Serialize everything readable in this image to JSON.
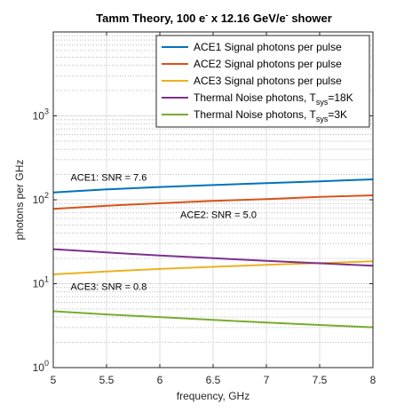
{
  "chart_data": {
    "type": "line",
    "title_parts": [
      "Tamm Theory, 100 e",
      "-",
      " x 12.16 GeV/e",
      "-",
      " shower"
    ],
    "xlabel": "frequency, GHz",
    "ylabel": "photons per GHz",
    "xlim": [
      5,
      8
    ],
    "ylim": [
      1,
      10000
    ],
    "yscale": "log",
    "grid": true,
    "legend_placement": "top-right",
    "xticks": [
      5,
      5.5,
      6,
      6.5,
      7,
      7.5,
      8
    ],
    "xtick_labels": [
      "5",
      "5.5",
      "6",
      "6.5",
      "7",
      "7.5",
      "8"
    ],
    "yticks": [
      1,
      10,
      100,
      1000
    ],
    "ytick_labels": [
      {
        "base": "10",
        "exp": "0"
      },
      {
        "base": "10",
        "exp": "1"
      },
      {
        "base": "10",
        "exp": "2"
      },
      {
        "base": "10",
        "exp": "3"
      }
    ],
    "series": [
      {
        "name": "ACE1 Signal photons per pulse",
        "name_parts": [
          "ACE1 Signal photons per pulse",
          "",
          ""
        ],
        "color": "#0072BD",
        "x": [
          5,
          5.5,
          6,
          6.5,
          7,
          7.5,
          8
        ],
        "y": [
          122,
          133,
          142,
          150,
          158,
          166,
          175
        ]
      },
      {
        "name": "ACE2 Signal photons per pulse",
        "name_parts": [
          "ACE2 Signal photons per pulse",
          "",
          ""
        ],
        "color": "#D95319",
        "x": [
          5,
          5.5,
          6,
          6.5,
          7,
          7.5,
          8
        ],
        "y": [
          78,
          85,
          91,
          97,
          102,
          108,
          113
        ]
      },
      {
        "name": "ACE3 Signal photons per pulse",
        "name_parts": [
          "ACE3 Signal photons per pulse",
          "",
          ""
        ],
        "color": "#EDB120",
        "x": [
          5,
          5.5,
          6,
          6.5,
          7,
          7.5,
          8
        ],
        "y": [
          12.9,
          14.0,
          15.0,
          15.9,
          16.8,
          17.6,
          18.5
        ]
      },
      {
        "name": "Thermal Noise photons, Tsys=18K",
        "name_parts": [
          "Thermal Noise photons, T",
          "sys",
          "=18K"
        ],
        "color": "#7E2F8E",
        "x": [
          5,
          5.5,
          6,
          6.5,
          7,
          7.5,
          8
        ],
        "y": [
          25.8,
          23.6,
          21.7,
          20.1,
          18.7,
          17.5,
          16.4
        ]
      },
      {
        "name": "Thermal Noise photons, Tsys=3K",
        "name_parts": [
          "Thermal Noise photons, T",
          "sys",
          "=3K"
        ],
        "color": "#77AC30",
        "x": [
          5,
          5.5,
          6,
          6.5,
          7,
          7.5,
          8
        ],
        "y": [
          4.7,
          4.3,
          4.0,
          3.7,
          3.45,
          3.22,
          3.02
        ]
      }
    ],
    "annotations": [
      {
        "text": "ACE1: SNR = 7.6",
        "x": 5.52,
        "y": 168
      },
      {
        "text": "ACE2: SNR = 5.0",
        "x": 6.55,
        "y": 61
      },
      {
        "text": "ACE3: SNR = 0.8",
        "x": 5.52,
        "y": 8.4
      }
    ]
  }
}
